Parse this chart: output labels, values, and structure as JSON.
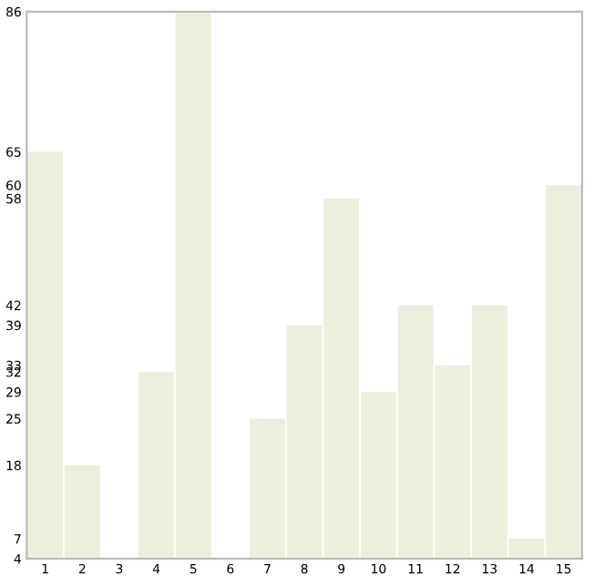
{
  "chart_data": {
    "type": "bar",
    "categories": [
      "1",
      "2",
      "3",
      "4",
      "5",
      "6",
      "7",
      "8",
      "9",
      "10",
      "11",
      "12",
      "13",
      "14",
      "15"
    ],
    "values": [
      65,
      18,
      4,
      32,
      86,
      4,
      25,
      39,
      58,
      29,
      42,
      33,
      42,
      7,
      60
    ],
    "color": "#eeeedf",
    "ylim": [
      4,
      86
    ],
    "yticks": [
      4,
      7,
      18,
      25,
      29,
      32,
      33,
      39,
      42,
      58,
      60,
      65,
      86
    ],
    "grid": false,
    "legend": false
  }
}
